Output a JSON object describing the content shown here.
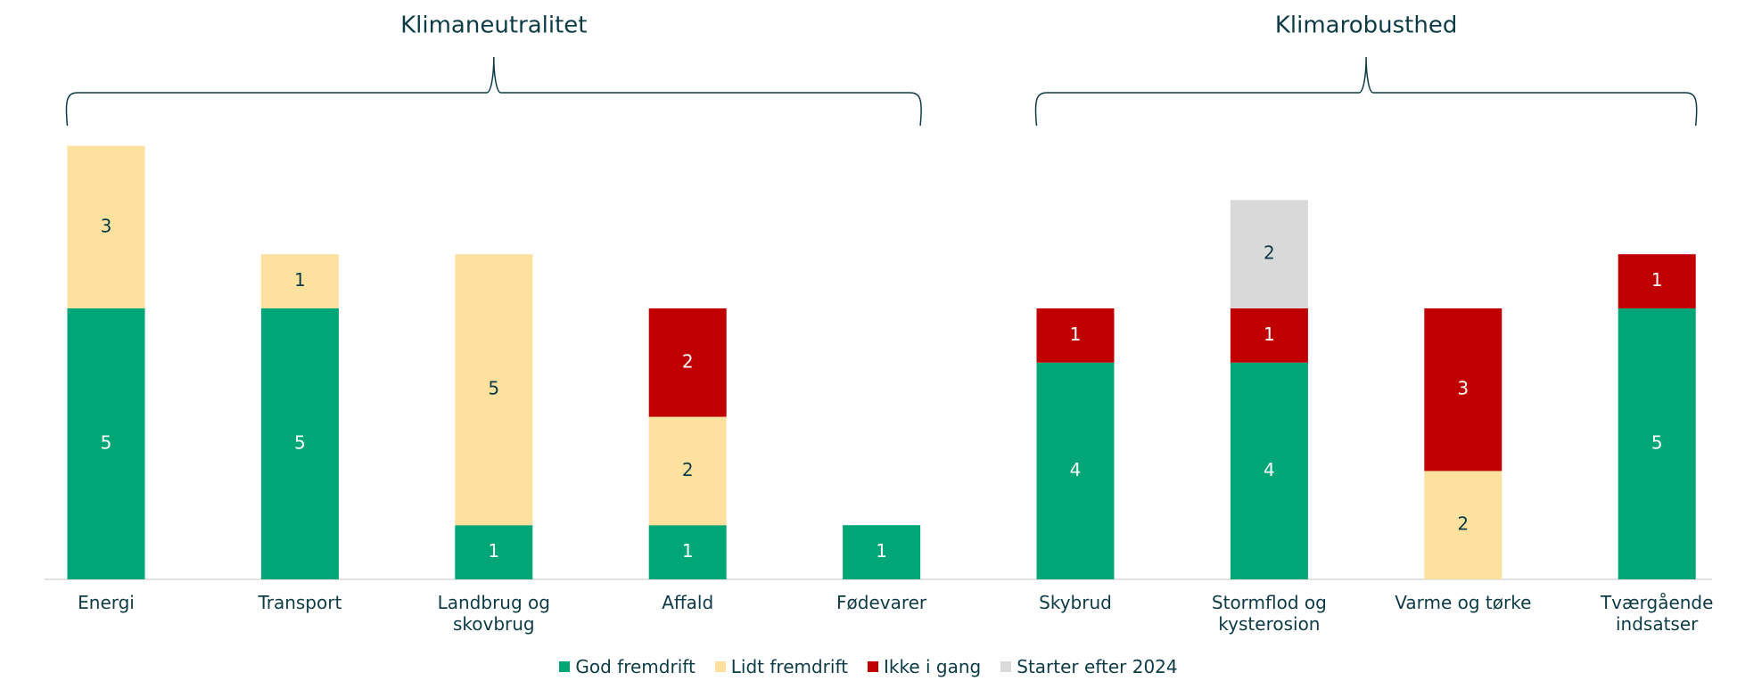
{
  "chart_data": {
    "type": "stacked_bar",
    "groups": [
      {
        "name": "Klimaneutralitet",
        "categories": [
          "Energi",
          "Transport",
          "Landbrug og skovbrug",
          "Affald",
          "Fødevarer"
        ]
      },
      {
        "name": "Klimarobusthed",
        "categories": [
          "Skybrud",
          "Stormflod og kysterosion",
          "Varme og tørke",
          "Tværgående indsatser"
        ]
      }
    ],
    "series": [
      {
        "name": "God fremdrift",
        "color": "#00a676",
        "values": [
          5,
          5,
          1,
          1,
          1,
          4,
          4,
          null,
          5
        ]
      },
      {
        "name": "Lidt fremdrift",
        "color": "#fde29f",
        "values": [
          3,
          1,
          5,
          2,
          null,
          null,
          null,
          2,
          null
        ]
      },
      {
        "name": "Ikke i gang",
        "color": "#c00000",
        "values": [
          null,
          null,
          null,
          2,
          null,
          1,
          1,
          3,
          1
        ]
      },
      {
        "name": "Starter efter 2024",
        "color": "#d9d9d9",
        "values": [
          null,
          null,
          null,
          null,
          null,
          null,
          2,
          null,
          null
        ]
      }
    ],
    "ylim": [
      0,
      8
    ],
    "legend": "bottom"
  }
}
